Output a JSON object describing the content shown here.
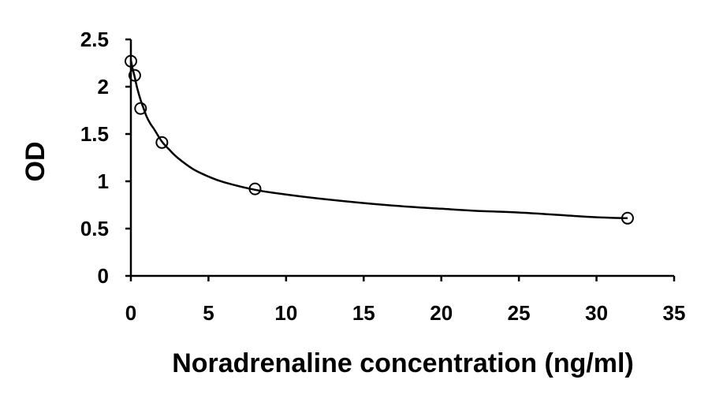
{
  "chart_data": {
    "type": "scatter",
    "xlabel": "Noradrenaline concentration (ng/ml)",
    "ylabel": "OD",
    "xlim": [
      0,
      35
    ],
    "ylim": [
      0,
      2.5
    ],
    "x_ticks": [
      0,
      5,
      10,
      15,
      20,
      25,
      30,
      35
    ],
    "y_ticks": [
      0,
      0.5,
      1,
      1.5,
      2,
      2.5
    ],
    "x_tick_labels": [
      "0",
      "5",
      "10",
      "15",
      "20",
      "25",
      "30",
      "35"
    ],
    "y_tick_labels": [
      "0",
      "0.5",
      "1",
      "1.5",
      "2",
      "2.5"
    ],
    "grid": false,
    "legend": "none",
    "series": [
      {
        "marker": "open-circle",
        "x": [
          0,
          0.25,
          0.625,
          2,
          8,
          32
        ],
        "y": [
          2.27,
          2.12,
          1.77,
          1.41,
          0.92,
          0.61
        ]
      }
    ],
    "fit_curve": {
      "style": "smooth-line",
      "x": [
        0,
        0.1,
        0.25,
        0.4,
        0.625,
        0.8,
        1,
        1.25,
        1.5,
        2,
        2.5,
        3,
        4,
        5,
        6,
        8,
        10,
        12,
        15,
        18,
        20,
        22,
        25,
        28,
        30,
        32
      ],
      "y": [
        2.28,
        2.2,
        2.1,
        1.99,
        1.86,
        1.78,
        1.69,
        1.61,
        1.55,
        1.42,
        1.33,
        1.25,
        1.13,
        1.05,
        0.99,
        0.91,
        0.86,
        0.82,
        0.77,
        0.73,
        0.71,
        0.69,
        0.67,
        0.64,
        0.62,
        0.61
      ]
    },
    "colors": {
      "axis": "#000000",
      "marker": "#000000",
      "curve": "#000000",
      "background": "#ffffff"
    }
  }
}
